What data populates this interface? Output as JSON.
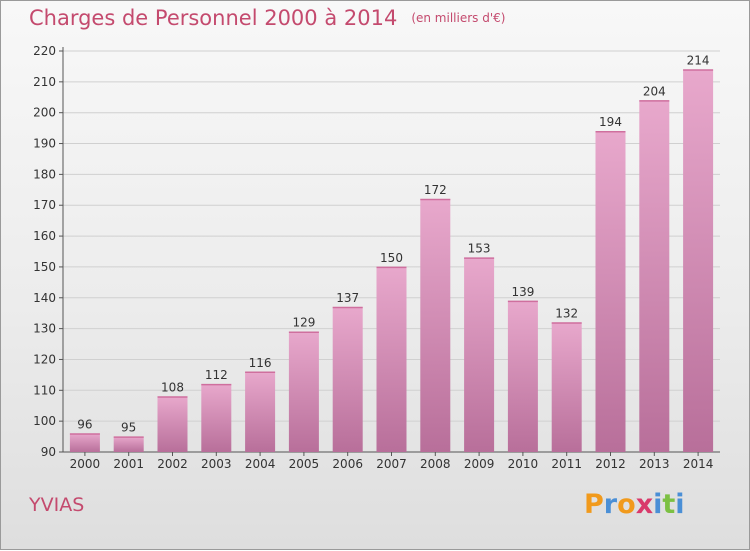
{
  "title": "Charges de Personnel 2000 à 2014",
  "unit": "(en milliers d'€)",
  "commune": "YVIAS",
  "logo": {
    "letters": [
      "P",
      "r",
      "o",
      "x",
      "i",
      "t",
      "i"
    ],
    "colors": [
      "#f19a1c",
      "#4a8fd6",
      "#f19a1c",
      "#d93a6b",
      "#4a8fd6",
      "#7cc043",
      "#4a8fd6"
    ]
  },
  "colors": {
    "bar_top": "#e8a8cc",
    "bar_bottom": "#b86f9a",
    "title": "#c44a6e"
  },
  "chart_data": {
    "type": "bar",
    "title": "Charges de Personnel 2000 à 2014",
    "categories": [
      "2000",
      "2001",
      "2002",
      "2003",
      "2004",
      "2005",
      "2006",
      "2007",
      "2008",
      "2009",
      "2010",
      "2011",
      "2012",
      "2013",
      "2014"
    ],
    "values": [
      96,
      95,
      108,
      112,
      116,
      129,
      137,
      150,
      172,
      153,
      139,
      132,
      194,
      204,
      214
    ],
    "ylim": [
      90,
      220
    ],
    "yticks": [
      90,
      100,
      110,
      120,
      130,
      140,
      150,
      160,
      170,
      180,
      190,
      200,
      210,
      220
    ],
    "grid": true,
    "xlabel": "",
    "ylabel": ""
  }
}
